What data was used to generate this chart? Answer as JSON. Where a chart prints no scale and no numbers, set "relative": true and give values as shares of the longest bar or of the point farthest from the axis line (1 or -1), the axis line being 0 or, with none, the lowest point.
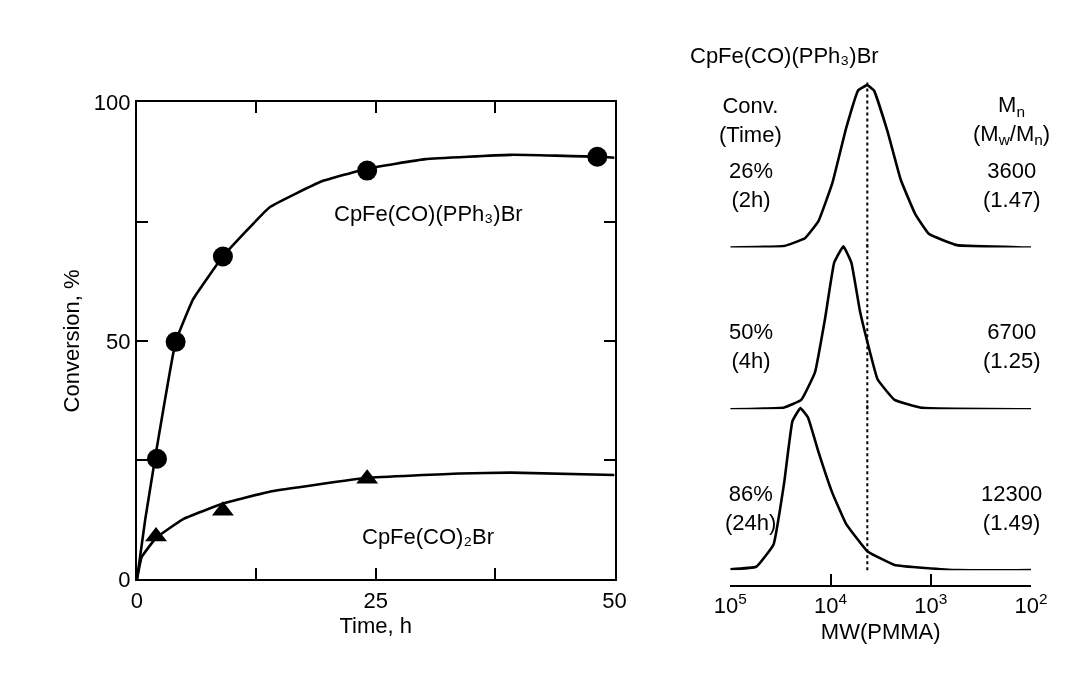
{
  "chart_data": [
    {
      "type": "scatter",
      "xlabel": "Time, h",
      "ylabel": "Conversion, %",
      "xlim": [
        0,
        50
      ],
      "ylim": [
        0,
        100
      ],
      "xticks": [
        0,
        {
          "value": 12.5,
          "label": null
        },
        25,
        {
          "value": 37.5,
          "label": null
        },
        50
      ],
      "yticks": [
        0,
        {
          "value": 25,
          "label": null
        },
        50,
        {
          "value": 75,
          "label": null
        },
        100
      ],
      "legend": false,
      "series": [
        {
          "name": "CpFe(CO)(PPh₃)Br",
          "type": "scatter",
          "marker": "circle",
          "color": "#000000",
          "x": [
            2.1,
            4.05,
            9.0,
            24.1,
            48.2
          ],
          "values": [
            25.3,
            49.8,
            67.7,
            85.7,
            88.6
          ]
        },
        {
          "type": "line",
          "marker": "none",
          "line_style": "solid",
          "color": "#000000",
          "x": [
            0,
            0.87,
            2.1,
            4.05,
            5.9,
            9.0,
            13.9,
            19.3,
            24.1,
            30.2,
            39.2,
            48.2,
            50
          ],
          "values": [
            0,
            12.6,
            27.8,
            49.8,
            58.8,
            67.7,
            78,
            83.4,
            86.1,
            88.1,
            89,
            88.6,
            88.4
          ]
        },
        {
          "name": "CpFe(CO)₂Br",
          "type": "scatter",
          "marker": "triangle",
          "color": "#000000",
          "x": [
            2.0,
            9.0,
            24.1
          ],
          "values": [
            9.0,
            14.4,
            21.1
          ]
        },
        {
          "type": "line",
          "marker": "none",
          "line_style": "solid",
          "color": "#000000",
          "x": [
            0,
            0.5,
            2.0,
            4.8,
            9.0,
            13.9,
            24.1,
            33.8,
            39.2,
            50
          ],
          "values": [
            0,
            4.7,
            8.7,
            12.6,
            15.9,
            18.4,
            21.3,
            22.2,
            22.4,
            21.9
          ]
        }
      ]
    },
    {
      "type": "line",
      "relative": true,
      "title": "CpFe(CO)(PPh₃)Br",
      "log": "x",
      "xlim": [
        100000,
        100
      ],
      "tick_labels": false,
      "annotations": [
        "Conv.\n(Time)",
        "M$_{n}$\n(M$_{w}$/M$_{n}$)",
        "26%\n(2h)",
        "3600\n(1.47)"
      ],
      "ref_lines": [
        {
          "axis": "x",
          "value": 4300,
          "line_style": "dotted",
          "color": "#000000"
        }
      ],
      "series": [
        {
          "color": "#000000",
          "x": [
            100000,
            29000,
            18000,
            13200,
            9600,
            7000,
            5300,
            4300,
            3700,
            2700,
            2000,
            1430,
            1040,
            550,
            100
          ],
          "values": [
            0,
            0.01,
            0.057,
            0.163,
            0.396,
            0.734,
            0.968,
            1,
            0.968,
            0.714,
            0.419,
            0.206,
            0.083,
            0.015,
            0
          ]
        }
      ]
    },
    {
      "type": "line",
      "relative": true,
      "log": "x",
      "xlim": [
        100000,
        100
      ],
      "tick_labels": false,
      "annotations": [
        "50%\n(4h)",
        "6700\n(1.25)"
      ],
      "ref_lines": [
        {
          "axis": "x",
          "value": 4300,
          "line_style": "dotted",
          "color": "#000000"
        }
      ],
      "series": [
        {
          "color": "#000000",
          "x": [
            100000,
            29000,
            19600,
            14300,
            11300,
            9200,
            7450,
            6200,
            5100,
            4300,
            3400,
            2300,
            1220,
            100
          ],
          "values": [
            0,
            0.011,
            0.057,
            0.226,
            0.563,
            0.9,
            1,
            0.9,
            0.605,
            0.415,
            0.184,
            0.057,
            0.008,
            0
          ]
        }
      ]
    },
    {
      "type": "line",
      "relative": true,
      "log": "x",
      "xlim": [
        100000,
        100
      ],
      "tick_labels": "x",
      "xlabel": "MW(PMMA)",
      "xticks": [
        {
          "value": 100000,
          "label": "10$^{5}$"
        },
        {
          "value": 10000,
          "label": "10$^{4}$"
        },
        {
          "value": 1000,
          "label": "10$^{3}$"
        },
        {
          "value": 100,
          "label": "10$^{2}$"
        }
      ],
      "annotations": [
        "86%\n(24h)",
        "12300\n(1.49)"
      ],
      "ref_lines": [
        {
          "axis": "x",
          "value": 4300,
          "line_style": "dotted",
          "color": "#000000"
        }
      ],
      "series": [
        {
          "color": "#000000",
          "x": [
            100000,
            55000,
            37000,
            29000,
            24000,
            20000,
            16800,
            13200,
            9600,
            7000,
            4300,
            2300,
            550,
            100
          ],
          "values": [
            0.006,
            0.021,
            0.159,
            0.54,
            0.919,
            1,
            0.943,
            0.73,
            0.477,
            0.286,
            0.117,
            0.032,
            0,
            0
          ]
        }
      ]
    }
  ]
}
